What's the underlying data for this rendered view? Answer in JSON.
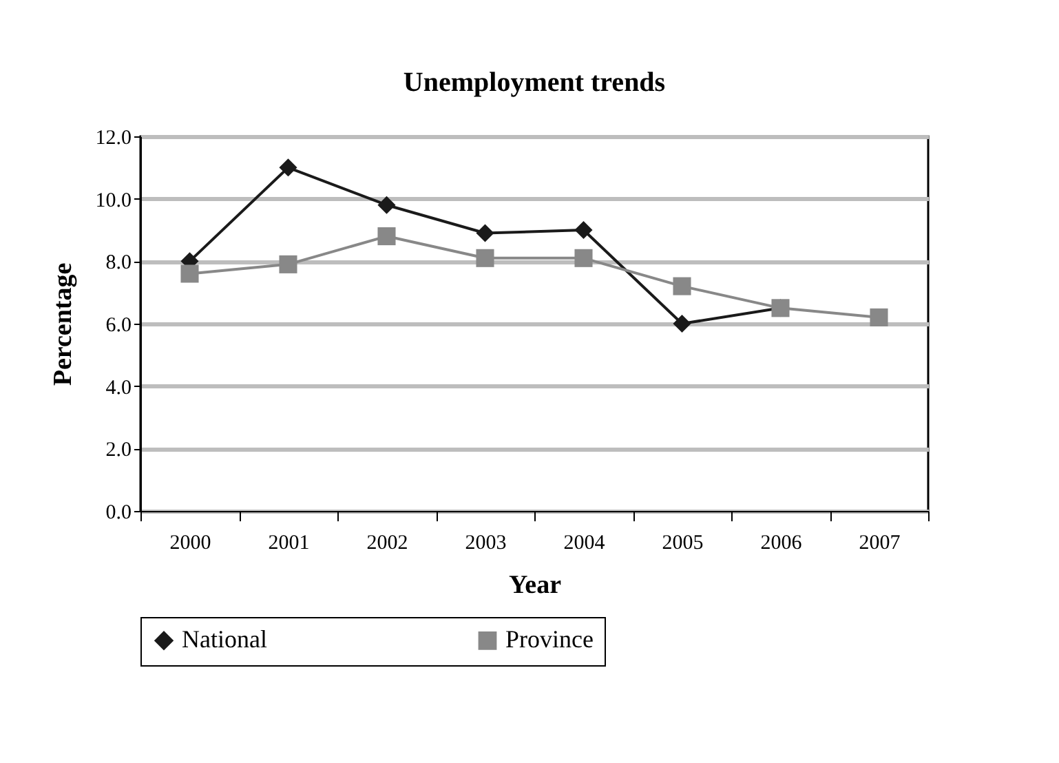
{
  "chart_data": {
    "type": "line",
    "title": "Unemployment trends",
    "xlabel": "Year",
    "ylabel": "Percentage",
    "categories": [
      "2000",
      "2001",
      "2002",
      "2003",
      "2004",
      "2005",
      "2006",
      "2007"
    ],
    "series": [
      {
        "name": "National",
        "color": "#1a1a1a",
        "marker": "diamond",
        "values": [
          8.0,
          11.0,
          9.8,
          8.9,
          9.0,
          6.0,
          6.5,
          null
        ]
      },
      {
        "name": "Province",
        "color": "#888888",
        "marker": "square",
        "values": [
          7.6,
          7.9,
          8.8,
          8.1,
          8.1,
          7.2,
          6.5,
          6.2
        ]
      }
    ],
    "ylim": [
      0,
      12
    ],
    "yticks": [
      {
        "value": 0,
        "label": "0.0"
      },
      {
        "value": 2,
        "label": "2.0"
      },
      {
        "value": 4,
        "label": "4.0"
      },
      {
        "value": 6,
        "label": "6.0"
      },
      {
        "value": 8,
        "label": "8.0"
      },
      {
        "value": 10,
        "label": "10.0"
      },
      {
        "value": 12,
        "label": "12.0"
      }
    ],
    "grid": "y",
    "legend": "bottom",
    "line_style": "solid"
  }
}
